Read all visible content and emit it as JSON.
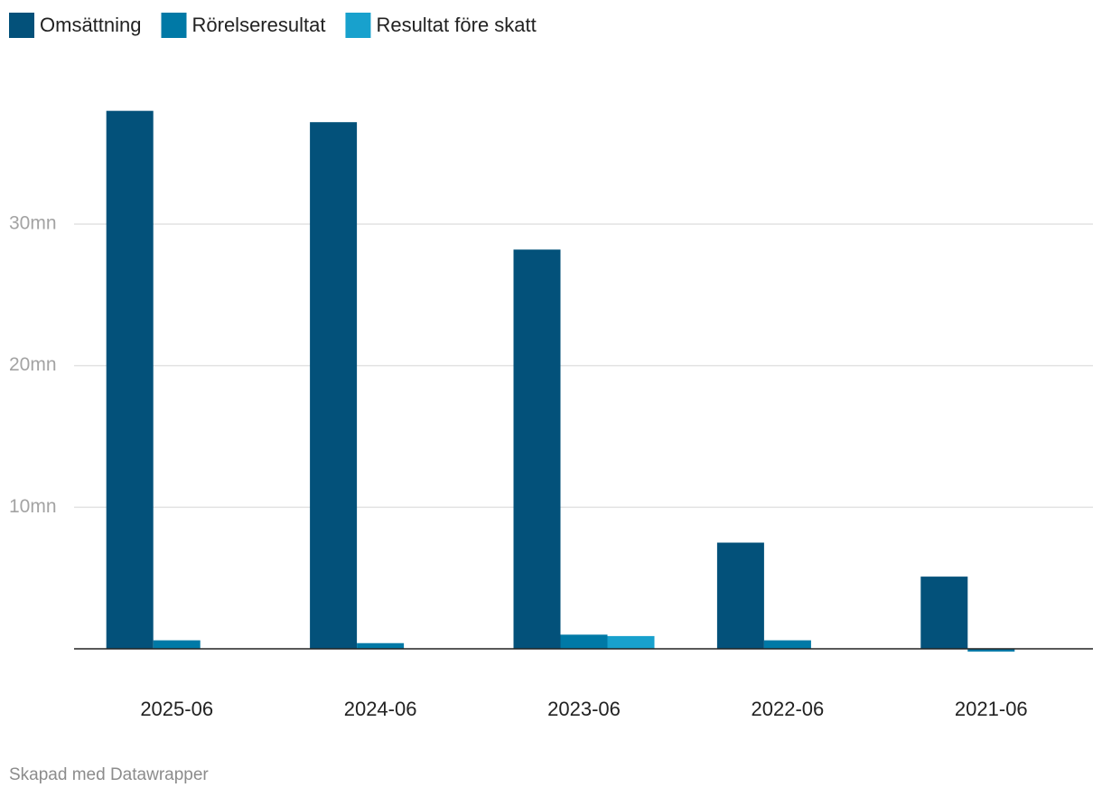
{
  "chart_data": {
    "type": "bar",
    "categories": [
      "2025-06",
      "2024-06",
      "2023-06",
      "2022-06",
      "2021-06"
    ],
    "series": [
      {
        "name": "Omsättning",
        "color": "#03517a",
        "values": [
          38.0,
          37.2,
          28.2,
          7.5,
          5.1
        ]
      },
      {
        "name": "Rörelseresultat",
        "color": "#0079a6",
        "values": [
          0.6,
          0.4,
          1.0,
          0.6,
          -0.2
        ]
      },
      {
        "name": "Resultat före skatt",
        "color": "#18a1cd",
        "values": [
          null,
          null,
          0.9,
          null,
          null
        ]
      }
    ],
    "ylim": [
      -1,
      40
    ],
    "yticks": [
      {
        "value": 10,
        "label": "10mn"
      },
      {
        "value": 20,
        "label": "20mn"
      },
      {
        "value": 30,
        "label": "30mn"
      }
    ],
    "grid": true,
    "legend": "top",
    "footer": "Skapad med Datawrapper"
  }
}
